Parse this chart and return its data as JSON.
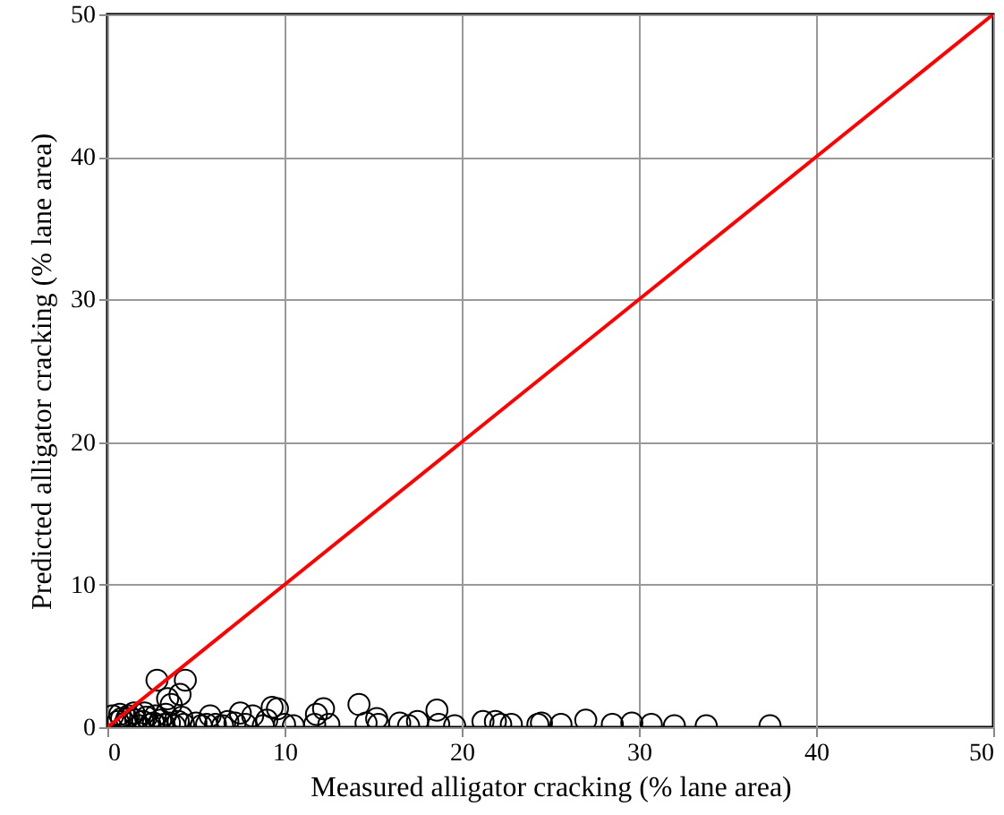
{
  "chart_data": {
    "type": "scatter",
    "xlabel": "Measured alligator cracking (% lane area)",
    "ylabel": "Predicted alligator cracking (% lane area)",
    "xlim": [
      0,
      50
    ],
    "ylim": [
      0,
      50
    ],
    "xticks": [
      0,
      10,
      20,
      30,
      40,
      50
    ],
    "yticks": [
      0,
      10,
      20,
      30,
      40,
      50
    ],
    "grid": true,
    "marker": "circle",
    "series": [
      {
        "color": "#000000",
        "x": [
          0.6,
          0.8,
          1.0,
          1.2,
          1.6,
          1.8,
          2.0,
          2.2,
          2.4,
          2.6,
          2.8,
          3.0,
          3.2,
          3.5,
          3.8,
          4.0,
          4.3,
          0.3,
          0.7,
          1.1,
          1.5,
          2.1,
          2.7,
          3.3,
          3.6,
          4.2,
          2.8,
          4.4,
          4.1,
          3.4,
          5.0,
          5.3,
          5.6,
          5.8,
          6.1,
          6.5,
          6.8,
          7.2,
          7.5,
          7.8,
          8.2,
          8.8,
          9.0,
          9.3,
          9.6,
          10.0,
          10.5,
          11.7,
          11.8,
          12.2,
          12.5,
          14.2,
          14.6,
          15.2,
          15.3,
          16.5,
          17.0,
          17.5,
          18.6,
          18.7,
          19.6,
          21.2,
          21.9,
          22.2,
          22.8,
          24.3,
          24.5,
          25.6,
          27.0,
          28.5,
          29.6,
          30.7,
          32.0,
          33.8,
          37.4
        ],
        "values": [
          0.4,
          0.6,
          0.3,
          0.8,
          0.5,
          0.1,
          0.4,
          0.7,
          0.2,
          0.3,
          0.1,
          0.5,
          0.2,
          0.3,
          0.1,
          0.4,
          0.2,
          0.8,
          0.9,
          0.6,
          1.0,
          1.0,
          0.8,
          0.9,
          1.6,
          0.7,
          3.3,
          3.3,
          2.3,
          2.0,
          0.3,
          0.1,
          0.2,
          0.8,
          0.2,
          0.1,
          0.4,
          0.3,
          1.0,
          0.2,
          0.8,
          0.1,
          0.5,
          1.4,
          1.3,
          0.2,
          0.1,
          0.2,
          0.9,
          1.3,
          0.2,
          1.6,
          0.3,
          0.6,
          0.2,
          0.3,
          0.1,
          0.4,
          1.2,
          0.2,
          0.1,
          0.4,
          0.4,
          0.2,
          0.2,
          0.2,
          0.3,
          0.2,
          0.5,
          0.2,
          0.3,
          0.2,
          0.1,
          0.1,
          0.1
        ]
      },
      {
        "type": "line",
        "color": "#ff0000",
        "marker": "none",
        "x": [
          0,
          50
        ],
        "values": [
          0,
          50
        ]
      }
    ]
  }
}
